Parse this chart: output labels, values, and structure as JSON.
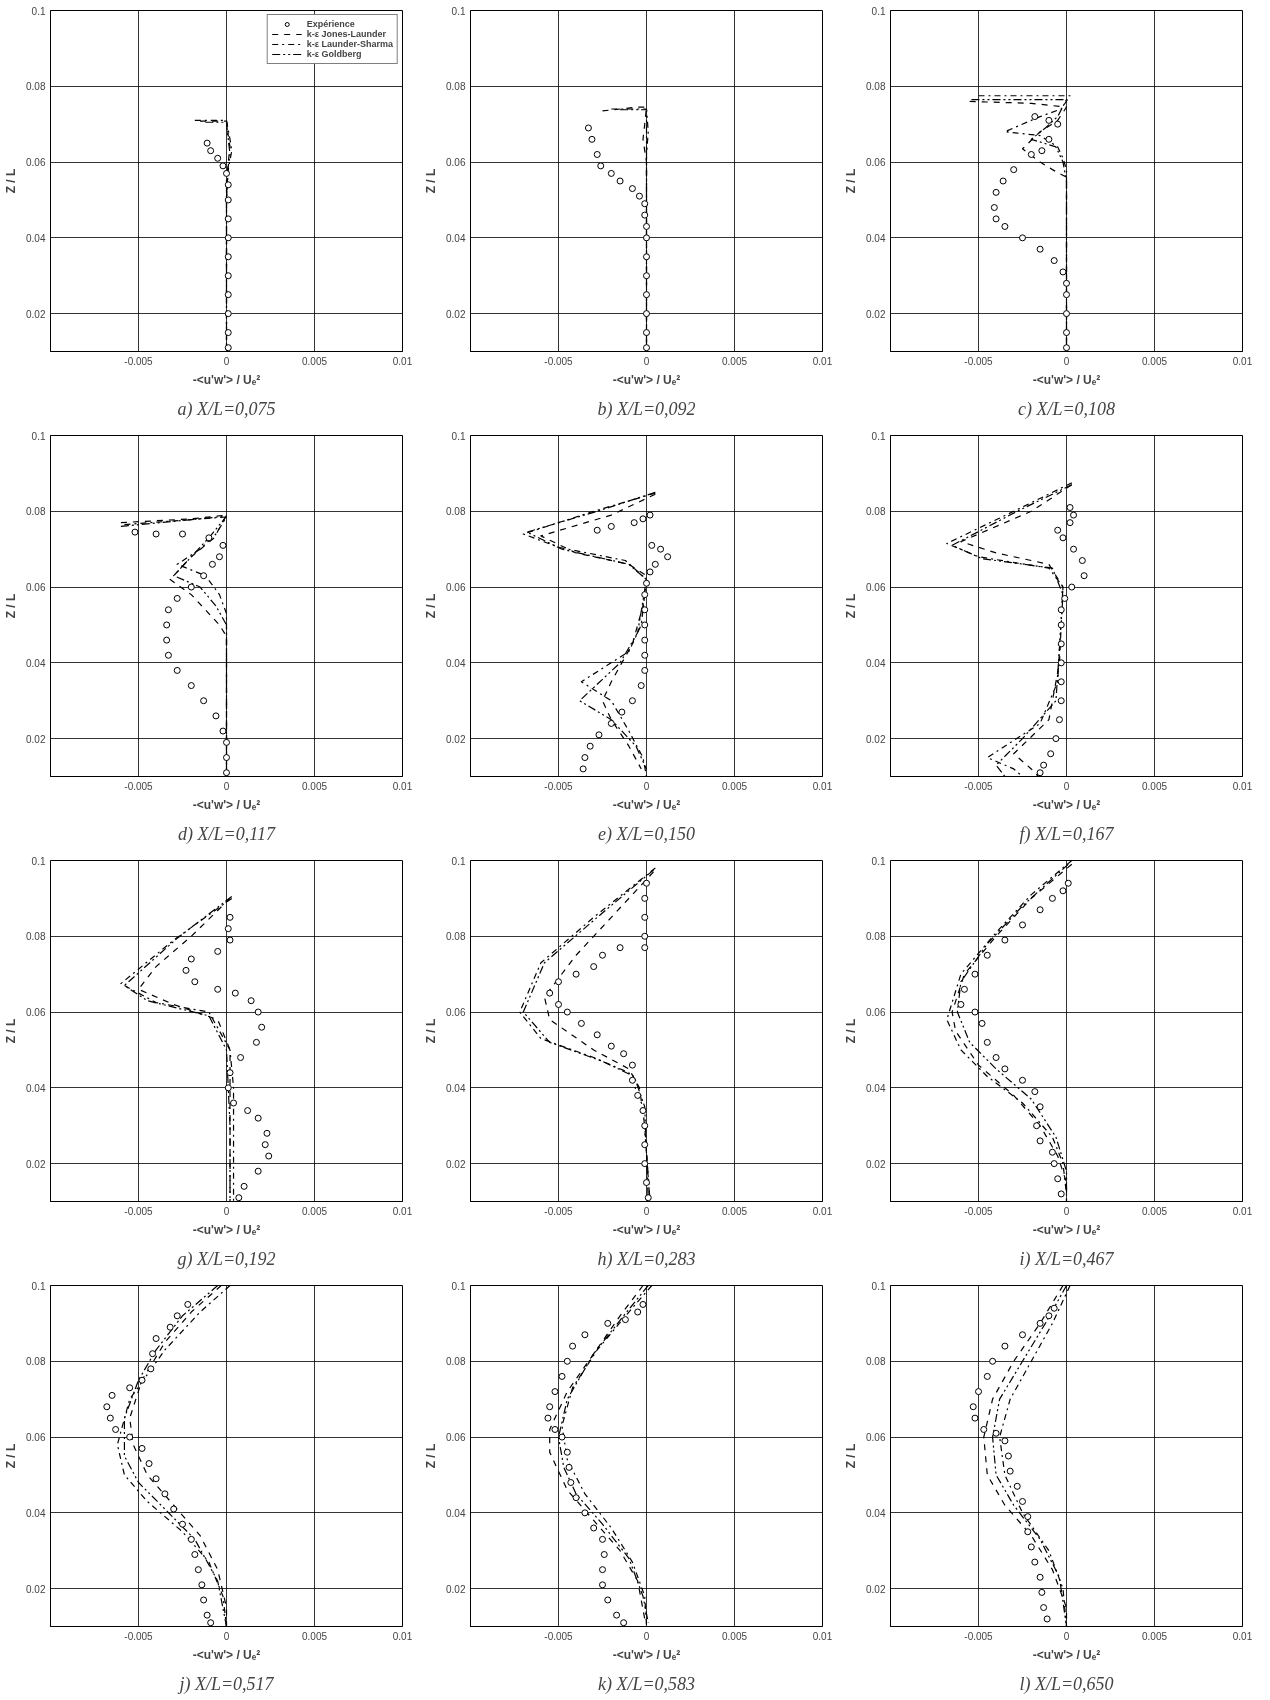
{
  "chart_data": [
    {
      "type": "scatter",
      "title": "a) X/L=0,075",
      "xlabel": "-<u'w'> / Uₑ²",
      "ylabel": "Z / L",
      "xlim": [
        -0.01,
        0.01
      ],
      "ylim": [
        0.01,
        0.1
      ],
      "xticks": [
        -0.005,
        0,
        0.005,
        0.01
      ],
      "yticks": [
        0.02,
        0.04,
        0.06,
        0.08,
        0.1
      ],
      "grid": true,
      "legend": "top right",
      "series": [
        {
          "name": "Expérience",
          "type": "scatter",
          "marker": "circle",
          "color": "#000000",
          "x": [
            -0.0011,
            -0.0009,
            -0.0005,
            -0.0002,
            0,
            0.0001,
            0.0001,
            0.0001,
            0.0001,
            0.0001,
            0.0001,
            0.0001,
            0.0001,
            0.0001,
            0.0001
          ],
          "values": [
            0.065,
            0.063,
            0.061,
            0.059,
            0.057,
            0.054,
            0.05,
            0.045,
            0.04,
            0.035,
            0.03,
            0.025,
            0.02,
            0.015,
            0.011
          ]
        },
        {
          "name": "k-ε Jones-Launder",
          "type": "line",
          "line_style": "dashed",
          "color": "#000000",
          "x": [
            -0.0015,
            0,
            0.0001,
            0.0002,
            0.0001,
            0,
            0
          ],
          "values": [
            0.0708,
            0.0708,
            0.067,
            0.064,
            0.06,
            0.05,
            0.01
          ]
        },
        {
          "name": "k-ε Launder-Sharma",
          "type": "line",
          "line_style": "dashdot",
          "color": "#000000",
          "x": [
            -0.0018,
            0,
            0.0002,
            0.0003,
            0.0001,
            0,
            0
          ],
          "values": [
            0.071,
            0.071,
            0.066,
            0.063,
            0.058,
            0.05,
            0.01
          ]
        },
        {
          "name": "k-ε Goldberg",
          "type": "line",
          "line_style": "dashdotdot",
          "color": "#000000",
          "x": [
            -0.0012,
            0,
            0.0001,
            0.0002,
            0,
            0
          ],
          "values": [
            0.0705,
            0.0705,
            0.066,
            0.062,
            0.056,
            0.01
          ]
        }
      ]
    },
    {
      "type": "scatter",
      "title": "b) X/L=0,092",
      "xlabel": "-<u'w'> / Uₑ²",
      "ylabel": "Z / L",
      "xlim": [
        -0.01,
        0.01
      ],
      "ylim": [
        0.01,
        0.1
      ],
      "xticks": [
        -0.005,
        0,
        0.005,
        0.01
      ],
      "yticks": [
        0.02,
        0.04,
        0.06,
        0.08,
        0.1
      ],
      "grid": true,
      "series": [
        {
          "type": "scatter",
          "marker": "circle",
          "color": "#000000",
          "x": [
            -0.0033,
            -0.0031,
            -0.0028,
            -0.0026,
            -0.002,
            -0.0015,
            -0.0008,
            -0.0004,
            -0.0001,
            -0.0001,
            0,
            0,
            0,
            0,
            0,
            0,
            0,
            0
          ],
          "values": [
            0.069,
            0.066,
            0.062,
            0.059,
            0.057,
            0.055,
            0.053,
            0.051,
            0.049,
            0.046,
            0.043,
            0.04,
            0.035,
            0.03,
            0.025,
            0.02,
            0.015,
            0.011
          ]
        },
        {
          "type": "line",
          "line_style": "dashed",
          "color": "#000000",
          "x": [
            -0.0025,
            -0.0005,
            0,
            -0.0001,
            -0.0002,
            0,
            0,
            0
          ],
          "values": [
            0.0735,
            0.0745,
            0.0745,
            0.07,
            0.066,
            0.06,
            0.05,
            0.01
          ]
        },
        {
          "type": "line",
          "line_style": "dashdot",
          "color": "#000000",
          "x": [
            -0.002,
            0,
            0.0001,
            0,
            0
          ],
          "values": [
            0.074,
            0.074,
            0.068,
            0.062,
            0.01
          ]
        },
        {
          "type": "line",
          "line_style": "dashdotdot",
          "color": "#000000",
          "x": [
            -0.0015,
            0,
            0,
            0
          ],
          "values": [
            0.0738,
            0.0738,
            0.069,
            0.01
          ]
        }
      ]
    },
    {
      "type": "scatter",
      "title": "c) X/L=0,108",
      "xlabel": "-<u'w'> / Uₑ²",
      "ylabel": "Z / L",
      "xlim": [
        -0.01,
        0.01
      ],
      "ylim": [
        0.01,
        0.1
      ],
      "xticks": [
        -0.005,
        0,
        0.005,
        0.01
      ],
      "yticks": [
        0.02,
        0.04,
        0.06,
        0.08,
        0.1
      ],
      "grid": true,
      "series": [
        {
          "type": "scatter",
          "marker": "circle",
          "color": "#000000",
          "x": [
            -0.0018,
            -0.001,
            -0.0005,
            -0.001,
            -0.0014,
            -0.002,
            -0.003,
            -0.0036,
            -0.004,
            -0.0041,
            -0.004,
            -0.0035,
            -0.0025,
            -0.0015,
            -0.0007,
            -0.0002,
            0,
            0,
            0,
            0,
            0
          ],
          "values": [
            0.072,
            0.071,
            0.07,
            0.066,
            0.063,
            0.062,
            0.058,
            0.055,
            0.052,
            0.048,
            0.045,
            0.043,
            0.04,
            0.037,
            0.034,
            0.031,
            0.028,
            0.025,
            0.02,
            0.015,
            0.011
          ]
        },
        {
          "type": "line",
          "line_style": "dashed",
          "color": "#000000",
          "x": [
            -0.0055,
            -0.002,
            0,
            -0.0005,
            -0.0015,
            -0.0025,
            -0.0015,
            -0.0008,
            -0.0004,
            0,
            0,
            0
          ],
          "values": [
            0.076,
            0.0755,
            0.0745,
            0.071,
            0.068,
            0.0635,
            0.06,
            0.058,
            0.057,
            0.056,
            0.05,
            0.01
          ]
        },
        {
          "type": "line",
          "line_style": "dashdot",
          "color": "#000000",
          "x": [
            -0.005,
            0.0002,
            -0.0003,
            -0.0015,
            -0.0035,
            -0.0015,
            -0.0005,
            -0.0002,
            0,
            0
          ],
          "values": [
            0.0775,
            0.0775,
            0.074,
            0.072,
            0.068,
            0.067,
            0.064,
            0.061,
            0.058,
            0.01
          ]
        },
        {
          "type": "line",
          "line_style": "dashdotdot",
          "color": "#000000",
          "x": [
            -0.0054,
            0,
            -0.0005,
            -0.0012,
            -0.002,
            -0.0006,
            -0.0002,
            0,
            0
          ],
          "values": [
            0.0765,
            0.0765,
            0.072,
            0.069,
            0.066,
            0.064,
            0.06,
            0.055,
            0.01
          ]
        }
      ]
    },
    {
      "type": "scatter",
      "title": "d) X/L=0,117",
      "xlabel": "-<u'w'> / Uₑ²",
      "ylabel": "Z / L",
      "xlim": [
        -0.01,
        0.01
      ],
      "ylim": [
        0.01,
        0.1
      ],
      "xticks": [
        -0.005,
        0,
        0.005,
        0.01
      ],
      "yticks": [
        0.02,
        0.04,
        0.06,
        0.08,
        0.1
      ],
      "grid": true,
      "series": [
        {
          "type": "scatter",
          "marker": "circle",
          "color": "#000000",
          "x": [
            -0.0052,
            -0.004,
            -0.0025,
            -0.001,
            -0.0002,
            -0.0004,
            -0.0008,
            -0.0013,
            -0.002,
            -0.0028,
            -0.0033,
            -0.0034,
            -0.0034,
            -0.0033,
            -0.0028,
            -0.002,
            -0.0013,
            -0.0006,
            -0.0002,
            0,
            0,
            0
          ],
          "values": [
            0.0745,
            0.074,
            0.074,
            0.073,
            0.071,
            0.068,
            0.066,
            0.063,
            0.06,
            0.057,
            0.054,
            0.05,
            0.046,
            0.042,
            0.038,
            0.034,
            0.03,
            0.026,
            0.022,
            0.019,
            0.015,
            0.011
          ]
        },
        {
          "type": "line",
          "line_style": "dashed",
          "color": "#000000",
          "x": [
            -0.006,
            -0.002,
            0,
            -0.0007,
            -0.002,
            -0.0032,
            -0.002,
            -0.001,
            -0.0004,
            0,
            0
          ],
          "values": [
            0.077,
            0.078,
            0.079,
            0.073,
            0.068,
            0.062,
            0.058,
            0.053,
            0.05,
            0.047,
            0.01
          ]
        },
        {
          "type": "line",
          "line_style": "dashdot",
          "color": "#000000",
          "x": [
            -0.0058,
            0,
            -0.0006,
            -0.0015,
            -0.0028,
            -0.0012,
            -0.0004,
            0,
            0
          ],
          "values": [
            0.0765,
            0.0785,
            0.074,
            0.07,
            0.066,
            0.063,
            0.058,
            0.053,
            0.01
          ]
        },
        {
          "type": "line",
          "line_style": "dashdotdot",
          "color": "#000000",
          "x": [
            -0.006,
            0,
            -0.001,
            -0.002,
            -0.003,
            -0.0015,
            -0.0006,
            0,
            0
          ],
          "values": [
            0.076,
            0.0787,
            0.073,
            0.068,
            0.063,
            0.06,
            0.055,
            0.05,
            0.01
          ]
        }
      ]
    },
    {
      "type": "scatter",
      "title": "e) X/L=0,150",
      "xlabel": "-<u'w'> / Uₑ²",
      "ylabel": "Z / L",
      "xlim": [
        -0.01,
        0.01
      ],
      "ylim": [
        0.01,
        0.1
      ],
      "xticks": [
        -0.005,
        0,
        0.005,
        0.01
      ],
      "yticks": [
        0.02,
        0.04,
        0.06,
        0.08,
        0.1
      ],
      "grid": true,
      "series": [
        {
          "type": "scatter",
          "marker": "circle",
          "color": "#000000",
          "x": [
            0.0002,
            -0.0002,
            -0.0007,
            -0.002,
            -0.0028,
            0.0003,
            0.0008,
            0.0012,
            0.0005,
            0.0002,
            0,
            -0.0001,
            -0.0001,
            -0.0001,
            -0.0001,
            -0.0001,
            -0.0001,
            -0.0003,
            -0.0008,
            -0.0014,
            -0.002,
            -0.0027,
            -0.0032,
            -0.0035,
            -0.0036
          ],
          "values": [
            0.079,
            0.078,
            0.077,
            0.076,
            0.075,
            0.071,
            0.07,
            0.068,
            0.066,
            0.064,
            0.061,
            0.058,
            0.054,
            0.05,
            0.046,
            0.042,
            0.038,
            0.034,
            0.03,
            0.027,
            0.024,
            0.021,
            0.018,
            0.015,
            0.012
          ]
        },
        {
          "type": "line",
          "line_style": "dashed",
          "color": "#000000",
          "x": [
            0.0005,
            -0.002,
            -0.006,
            -0.004,
            -0.001,
            0,
            -0.0002,
            -0.0008,
            -0.002,
            -0.0025,
            -0.002,
            -0.001,
            -0.0003
          ],
          "values": [
            0.0845,
            0.079,
            0.0735,
            0.069,
            0.066,
            0.063,
            0.055,
            0.045,
            0.035,
            0.03,
            0.025,
            0.018,
            0.012
          ]
        },
        {
          "type": "line",
          "line_style": "dashdot",
          "color": "#000000",
          "x": [
            0.0005,
            -0.003,
            -0.007,
            -0.005,
            -0.0012,
            0,
            -0.0003,
            -0.001,
            -0.0037,
            -0.002,
            -0.001,
            -0.0002,
            0
          ],
          "values": [
            0.0848,
            0.08,
            0.074,
            0.0705,
            0.067,
            0.062,
            0.05,
            0.043,
            0.035,
            0.03,
            0.022,
            0.015,
            0.01
          ]
        },
        {
          "type": "line",
          "line_style": "dashdotdot",
          "color": "#000000",
          "x": [
            0.0005,
            -0.0028,
            -0.0068,
            -0.0048,
            -0.001,
            0,
            -0.0005,
            -0.0015,
            -0.0038,
            -0.002,
            -0.0006,
            0
          ],
          "values": [
            0.085,
            0.08,
            0.0745,
            0.07,
            0.066,
            0.062,
            0.048,
            0.04,
            0.03,
            0.025,
            0.018,
            0.012
          ]
        }
      ]
    },
    {
      "type": "scatter",
      "title": "f) X/L=0,167",
      "xlabel": "-<u'w'> / Uₑ²",
      "ylabel": "Z / L",
      "xlim": [
        -0.01,
        0.01
      ],
      "ylim": [
        0.01,
        0.1
      ],
      "xticks": [
        -0.005,
        0,
        0.005,
        0.01
      ],
      "yticks": [
        0.02,
        0.04,
        0.06,
        0.08,
        0.1
      ],
      "grid": true,
      "series": [
        {
          "type": "scatter",
          "marker": "circle",
          "color": "#000000",
          "x": [
            0.0002,
            0.0004,
            0.0002,
            -0.0005,
            -0.0002,
            0.0004,
            0.0009,
            0.001,
            0.0003,
            -0.0001,
            -0.0003,
            -0.0003,
            -0.0003,
            -0.0003,
            -0.0003,
            -0.0003,
            -0.0004,
            -0.0006,
            -0.0009,
            -0.0013,
            -0.0015
          ],
          "values": [
            0.081,
            0.079,
            0.077,
            0.075,
            0.073,
            0.07,
            0.067,
            0.063,
            0.06,
            0.057,
            0.054,
            0.05,
            0.045,
            0.04,
            0.035,
            0.03,
            0.025,
            0.02,
            0.016,
            0.013,
            0.011
          ]
        },
        {
          "type": "line",
          "line_style": "dashed",
          "color": "#000000",
          "x": [
            0.0003,
            -0.002,
            -0.006,
            -0.004,
            -0.001,
            -0.0002,
            -0.0004,
            -0.001,
            -0.003,
            -0.002,
            -0.0016
          ],
          "values": [
            0.087,
            0.08,
            0.072,
            0.069,
            0.066,
            0.06,
            0.04,
            0.025,
            0.016,
            0.012,
            0.01
          ]
        },
        {
          "type": "line",
          "line_style": "dashdot",
          "color": "#000000",
          "x": [
            0.0003,
            -0.003,
            -0.0068,
            -0.005,
            -0.001,
            -0.0002,
            -0.0005,
            -0.0015,
            -0.0045,
            -0.003,
            -0.0025
          ],
          "values": [
            0.0875,
            0.08,
            0.0715,
            0.068,
            0.065,
            0.06,
            0.035,
            0.024,
            0.015,
            0.012,
            0.01
          ]
        },
        {
          "type": "line",
          "line_style": "dashdotdot",
          "color": "#000000",
          "x": [
            0.0003,
            -0.0028,
            -0.0065,
            -0.0048,
            -0.0008,
            -0.0002,
            -0.0006,
            -0.0025,
            -0.004,
            -0.0035
          ],
          "values": [
            0.087,
            0.08,
            0.071,
            0.0675,
            0.065,
            0.058,
            0.03,
            0.02,
            0.013,
            0.01
          ]
        }
      ]
    },
    {
      "type": "scatter",
      "title": "g) X/L=0,192",
      "xlabel": "-<u'w'> / Uₑ²",
      "ylabel": "Z / L",
      "xlim": [
        -0.01,
        0.01
      ],
      "ylim": [
        0.01,
        0.1
      ],
      "xticks": [
        -0.005,
        0,
        0.005,
        0.01
      ],
      "yticks": [
        0.02,
        0.04,
        0.06,
        0.08,
        0.1
      ],
      "grid": true,
      "series": [
        {
          "type": "scatter",
          "marker": "circle",
          "color": "#000000",
          "x": [
            0.0002,
            0.0001,
            0.0002,
            -0.0005,
            -0.002,
            -0.0023,
            -0.0018,
            -0.0005,
            0.0005,
            0.0014,
            0.0018,
            0.002,
            0.0017,
            0.0008,
            0.0002,
            0.0001,
            0.0004,
            0.0012,
            0.0018,
            0.0023,
            0.0022,
            0.0024,
            0.0018,
            0.001,
            0.0007
          ],
          "values": [
            0.085,
            0.082,
            0.079,
            0.076,
            0.074,
            0.071,
            0.068,
            0.066,
            0.065,
            0.063,
            0.06,
            0.056,
            0.052,
            0.048,
            0.044,
            0.04,
            0.036,
            0.034,
            0.032,
            0.028,
            0.025,
            0.022,
            0.018,
            0.014,
            0.011
          ]
        },
        {
          "type": "line",
          "line_style": "dashed",
          "color": "#000000",
          "x": [
            0.0002,
            -0.002,
            -0.004,
            -0.005,
            -0.003,
            -0.0005,
            0.0002,
            0.0002,
            0.0002
          ],
          "values": [
            0.09,
            0.08,
            0.072,
            0.066,
            0.062,
            0.058,
            0.05,
            0.04,
            0.01
          ]
        },
        {
          "type": "line",
          "line_style": "dashdot",
          "color": "#000000",
          "x": [
            0.0003,
            -0.003,
            -0.006,
            -0.004,
            -0.001,
            0.0002,
            0.0004,
            0.0004
          ],
          "values": [
            0.09,
            0.079,
            0.0675,
            0.0625,
            0.06,
            0.05,
            0.04,
            0.01
          ]
        },
        {
          "type": "line",
          "line_style": "dashdotdot",
          "color": "#000000",
          "x": [
            0.0003,
            -0.0028,
            -0.0058,
            -0.0045,
            -0.001,
            0,
            0.0002,
            0.0002
          ],
          "values": [
            0.0905,
            0.0795,
            0.067,
            0.063,
            0.059,
            0.05,
            0.03,
            0.01
          ]
        }
      ]
    },
    {
      "type": "scatter",
      "title": "h) X/L=0,283",
      "xlabel": "-<u'w'> / Uₑ²",
      "ylabel": "Z / L",
      "xlim": [
        -0.01,
        0.01
      ],
      "ylim": [
        0.01,
        0.1
      ],
      "xticks": [
        -0.005,
        0,
        0.005,
        0.01
      ],
      "yticks": [
        0.02,
        0.04,
        0.06,
        0.08,
        0.1
      ],
      "grid": true,
      "series": [
        {
          "type": "scatter",
          "marker": "circle",
          "color": "#000000",
          "x": [
            0,
            -0.0001,
            -0.0001,
            -0.0001,
            -0.0001,
            -0.0015,
            -0.0025,
            -0.003,
            -0.004,
            -0.005,
            -0.0055,
            -0.005,
            -0.0045,
            -0.0037,
            -0.0028,
            -0.002,
            -0.0013,
            -0.0008,
            -0.0008,
            -0.0005,
            -0.0002,
            -0.0001,
            -0.0001,
            -0.0001,
            0,
            0.0001
          ],
          "values": [
            0.094,
            0.09,
            0.085,
            0.08,
            0.077,
            0.077,
            0.075,
            0.072,
            0.07,
            0.068,
            0.065,
            0.062,
            0.06,
            0.057,
            0.054,
            0.051,
            0.049,
            0.046,
            0.042,
            0.038,
            0.034,
            0.03,
            0.025,
            0.02,
            0.015,
            0.011
          ]
        },
        {
          "type": "line",
          "line_style": "dashed",
          "color": "#000000",
          "x": [
            0.0004,
            -0.002,
            -0.004,
            -0.0058,
            -0.0055,
            -0.003,
            -0.001,
            -0.0004,
            -0.0001,
            0.0002
          ],
          "values": [
            0.097,
            0.085,
            0.075,
            0.064,
            0.058,
            0.05,
            0.045,
            0.04,
            0.03,
            0.01
          ]
        },
        {
          "type": "line",
          "line_style": "dashdot",
          "color": "#000000",
          "x": [
            0.0005,
            -0.003,
            -0.006,
            -0.0072,
            -0.006,
            -0.003,
            -0.001,
            -0.0002,
            0.0002
          ],
          "values": [
            0.098,
            0.085,
            0.073,
            0.06,
            0.053,
            0.048,
            0.044,
            0.035,
            0.01
          ]
        },
        {
          "type": "line",
          "line_style": "dashdotdot",
          "color": "#000000",
          "x": [
            0.0004,
            -0.0028,
            -0.0058,
            -0.007,
            -0.0055,
            -0.0025,
            -0.0007,
            -0.0001,
            0.0001
          ],
          "values": [
            0.0975,
            0.085,
            0.073,
            0.06,
            0.052,
            0.047,
            0.043,
            0.035,
            0.01
          ]
        }
      ]
    },
    {
      "type": "scatter",
      "title": "i) X/L=0,467",
      "xlabel": "-<u'w'> / Uₑ²",
      "ylabel": "Z / L",
      "xlim": [
        -0.01,
        0.01
      ],
      "ylim": [
        0.01,
        0.1
      ],
      "xticks": [
        -0.005,
        0,
        0.005,
        0.01
      ],
      "yticks": [
        0.02,
        0.04,
        0.06,
        0.08,
        0.1
      ],
      "grid": true,
      "series": [
        {
          "type": "scatter",
          "marker": "circle",
          "color": "#000000",
          "x": [
            0.0001,
            -0.0002,
            -0.0008,
            -0.0015,
            -0.0025,
            -0.0035,
            -0.0045,
            -0.0052,
            -0.0058,
            -0.006,
            -0.0052,
            -0.0048,
            -0.0045,
            -0.004,
            -0.0035,
            -0.0025,
            -0.0018,
            -0.0015,
            -0.0017,
            -0.0015,
            -0.0008,
            -0.0007,
            -0.0005,
            -0.0003
          ],
          "values": [
            0.094,
            0.092,
            0.09,
            0.087,
            0.083,
            0.079,
            0.075,
            0.07,
            0.066,
            0.062,
            0.06,
            0.057,
            0.052,
            0.048,
            0.045,
            0.042,
            0.039,
            0.035,
            0.03,
            0.026,
            0.023,
            0.02,
            0.016,
            0.012
          ]
        },
        {
          "type": "line",
          "line_style": "dashed",
          "color": "#000000",
          "x": [
            0.0003,
            -0.002,
            -0.004,
            -0.0058,
            -0.0065,
            -0.0063,
            -0.005,
            -0.003,
            -0.0015,
            -0.0005,
            0,
            0
          ],
          "values": [
            0.099,
            0.09,
            0.08,
            0.07,
            0.06,
            0.055,
            0.046,
            0.038,
            0.03,
            0.022,
            0.015,
            0.01
          ]
        },
        {
          "type": "line",
          "line_style": "dashdot",
          "color": "#000000",
          "x": [
            0.0003,
            -0.002,
            -0.004,
            -0.006,
            -0.0068,
            -0.006,
            -0.0045,
            -0.0025,
            -0.0008,
            -0.0002,
            0
          ],
          "values": [
            0.1,
            0.091,
            0.081,
            0.07,
            0.058,
            0.05,
            0.043,
            0.036,
            0.027,
            0.02,
            0.012
          ]
        },
        {
          "type": "line",
          "line_style": "dashdotdot",
          "color": "#000000",
          "x": [
            0.0001,
            -0.0025,
            -0.0045,
            -0.006,
            -0.0062,
            -0.0055,
            -0.004,
            -0.002,
            -0.0006,
            0,
            0
          ],
          "values": [
            0.099,
            0.088,
            0.078,
            0.068,
            0.06,
            0.052,
            0.045,
            0.037,
            0.027,
            0.018,
            0.01
          ]
        }
      ]
    },
    {
      "type": "scatter",
      "title": "j) X/L=0,517",
      "xlabel": "-<u'w'> / Uₑ²",
      "ylabel": "Z / L",
      "xlim": [
        -0.01,
        0.01
      ],
      "ylim": [
        0.01,
        0.1
      ],
      "xticks": [
        -0.005,
        0,
        0.005,
        0.01
      ],
      "yticks": [
        0.02,
        0.04,
        0.06,
        0.08,
        0.1
      ],
      "grid": true,
      "series": [
        {
          "type": "scatter",
          "marker": "circle",
          "color": "#000000",
          "x": [
            -0.0022,
            -0.0028,
            -0.0032,
            -0.004,
            -0.0042,
            -0.0043,
            -0.0048,
            -0.0055,
            -0.0065,
            -0.0068,
            -0.0066,
            -0.0063,
            -0.0055,
            -0.0048,
            -0.0044,
            -0.004,
            -0.0035,
            -0.003,
            -0.0025,
            -0.002,
            -0.0018,
            -0.0016,
            -0.0014,
            -0.0013,
            -0.0011,
            -0.0009
          ],
          "values": [
            0.095,
            0.092,
            0.089,
            0.086,
            0.082,
            0.078,
            0.075,
            0.073,
            0.071,
            0.068,
            0.065,
            0.062,
            0.06,
            0.057,
            0.053,
            0.049,
            0.045,
            0.041,
            0.037,
            0.033,
            0.029,
            0.025,
            0.021,
            0.017,
            0.013,
            0.011
          ]
        },
        {
          "type": "line",
          "line_style": "dashed",
          "color": "#000000",
          "x": [
            -0.0003,
            -0.002,
            -0.0035,
            -0.0048,
            -0.0055,
            -0.0053,
            -0.0045,
            -0.003,
            -0.0015,
            -0.0005,
            0,
            0
          ],
          "values": [
            0.1,
            0.093,
            0.085,
            0.075,
            0.065,
            0.058,
            0.05,
            0.042,
            0.034,
            0.025,
            0.015,
            0.01
          ]
        },
        {
          "type": "line",
          "line_style": "dashdot",
          "color": "#000000",
          "x": [
            0.0002,
            -0.0015,
            -0.0035,
            -0.0055,
            -0.0062,
            -0.0058,
            -0.0045,
            -0.0025,
            -0.001,
            -0.0002,
            0
          ],
          "values": [
            0.1,
            0.093,
            0.083,
            0.07,
            0.058,
            0.05,
            0.043,
            0.035,
            0.027,
            0.018,
            0.01
          ]
        },
        {
          "type": "line",
          "line_style": "dashdotdot",
          "color": "#000000",
          "x": [
            -0.0005,
            -0.0025,
            -0.004,
            -0.005,
            -0.0058,
            -0.0058,
            -0.005,
            -0.0035,
            -0.0018,
            -0.0005,
            0
          ],
          "values": [
            0.1,
            0.092,
            0.083,
            0.075,
            0.065,
            0.055,
            0.048,
            0.041,
            0.033,
            0.022,
            0.01
          ]
        }
      ]
    },
    {
      "type": "scatter",
      "title": "k) X/L=0,583",
      "xlabel": "-<u'w'> / Uₑ²",
      "ylabel": "Z / L",
      "xlim": [
        -0.01,
        0.01
      ],
      "ylim": [
        0.01,
        0.1
      ],
      "xticks": [
        -0.005,
        0,
        0.005,
        0.01
      ],
      "yticks": [
        0.02,
        0.04,
        0.06,
        0.08,
        0.1
      ],
      "grid": true,
      "series": [
        {
          "type": "scatter",
          "marker": "circle",
          "color": "#000000",
          "x": [
            -0.0002,
            -0.0005,
            -0.0012,
            -0.0022,
            -0.0035,
            -0.0042,
            -0.0045,
            -0.0048,
            -0.0052,
            -0.0055,
            -0.0056,
            -0.0052,
            -0.0048,
            -0.0045,
            -0.0044,
            -0.0043,
            -0.004,
            -0.0035,
            -0.003,
            -0.0025,
            -0.0024,
            -0.0025,
            -0.0025,
            -0.0022,
            -0.0017,
            -0.0013
          ],
          "values": [
            0.095,
            0.093,
            0.091,
            0.09,
            0.087,
            0.084,
            0.08,
            0.076,
            0.072,
            0.068,
            0.065,
            0.062,
            0.06,
            0.056,
            0.052,
            0.048,
            0.044,
            0.04,
            0.036,
            0.033,
            0.029,
            0.025,
            0.021,
            0.017,
            0.013,
            0.011
          ]
        },
        {
          "type": "line",
          "line_style": "dashed",
          "color": "#000000",
          "x": [
            -0.0002,
            -0.0015,
            -0.003,
            -0.0045,
            -0.0055,
            -0.0055,
            -0.0045,
            -0.003,
            -0.0015,
            -0.0005,
            -0.0001
          ],
          "values": [
            0.1,
            0.092,
            0.082,
            0.072,
            0.062,
            0.056,
            0.046,
            0.038,
            0.03,
            0.022,
            0.012
          ]
        },
        {
          "type": "line",
          "line_style": "dashdot",
          "color": "#000000",
          "x": [
            0.0003,
            -0.001,
            -0.0028,
            -0.0042,
            -0.0048,
            -0.0045,
            -0.0035,
            -0.002,
            -0.0008,
            -0.0001,
            0
          ],
          "values": [
            0.1,
            0.093,
            0.083,
            0.073,
            0.063,
            0.054,
            0.045,
            0.036,
            0.027,
            0.018,
            0.01
          ]
        },
        {
          "type": "line",
          "line_style": "dashdotdot",
          "color": "#000000",
          "x": [
            0.0001,
            -0.0013,
            -0.003,
            -0.0045,
            -0.005,
            -0.0047,
            -0.004,
            -0.0025,
            -0.001,
            -0.0002,
            0.0001
          ],
          "values": [
            0.1,
            0.092,
            0.082,
            0.07,
            0.06,
            0.052,
            0.045,
            0.037,
            0.028,
            0.018,
            0.011
          ]
        }
      ]
    },
    {
      "type": "scatter",
      "title": "l) X/L=0,650",
      "xlabel": "-<u'w'> / Uₑ²",
      "ylabel": "Z / L",
      "xlim": [
        -0.01,
        0.01
      ],
      "ylim": [
        0.01,
        0.1
      ],
      "xticks": [
        -0.005,
        0,
        0.005,
        0.01
      ],
      "yticks": [
        0.02,
        0.04,
        0.06,
        0.08,
        0.1
      ],
      "grid": true,
      "series": [
        {
          "type": "scatter",
          "marker": "circle",
          "color": "#000000",
          "x": [
            -0.0007,
            -0.001,
            -0.0015,
            -0.0025,
            -0.0035,
            -0.0042,
            -0.0045,
            -0.005,
            -0.0053,
            -0.0052,
            -0.0047,
            -0.004,
            -0.0035,
            -0.0033,
            -0.0032,
            -0.0028,
            -0.0025,
            -0.0022,
            -0.0022,
            -0.002,
            -0.0018,
            -0.0015,
            -0.0014,
            -0.0013,
            -0.0011
          ],
          "values": [
            0.094,
            0.092,
            0.09,
            0.087,
            0.084,
            0.08,
            0.076,
            0.072,
            0.068,
            0.065,
            0.062,
            0.061,
            0.059,
            0.055,
            0.051,
            0.047,
            0.043,
            0.039,
            0.035,
            0.031,
            0.027,
            0.023,
            0.019,
            0.015,
            0.012
          ]
        },
        {
          "type": "line",
          "line_style": "dashed",
          "color": "#000000",
          "x": [
            -0.0002,
            -0.0015,
            -0.003,
            -0.0042,
            -0.0047,
            -0.0045,
            -0.0035,
            -0.002,
            -0.0008,
            0,
            0
          ],
          "values": [
            0.1,
            0.09,
            0.08,
            0.07,
            0.06,
            0.05,
            0.042,
            0.034,
            0.025,
            0.015,
            0.01
          ]
        },
        {
          "type": "line",
          "line_style": "dashdot",
          "color": "#000000",
          "x": [
            0.0002,
            -0.0008,
            -0.002,
            -0.0032,
            -0.0038,
            -0.0035,
            -0.0025,
            -0.001,
            -0.0002,
            0
          ],
          "values": [
            0.1,
            0.09,
            0.08,
            0.07,
            0.06,
            0.05,
            0.04,
            0.03,
            0.02,
            0.01
          ]
        },
        {
          "type": "line",
          "line_style": "dashdotdot",
          "color": "#000000",
          "x": [
            0,
            -0.0012,
            -0.0025,
            -0.0038,
            -0.0042,
            -0.004,
            -0.003,
            -0.0015,
            -0.0004,
            0
          ],
          "values": [
            0.1,
            0.09,
            0.08,
            0.07,
            0.06,
            0.05,
            0.042,
            0.033,
            0.023,
            0.01
          ]
        }
      ]
    }
  ]
}
